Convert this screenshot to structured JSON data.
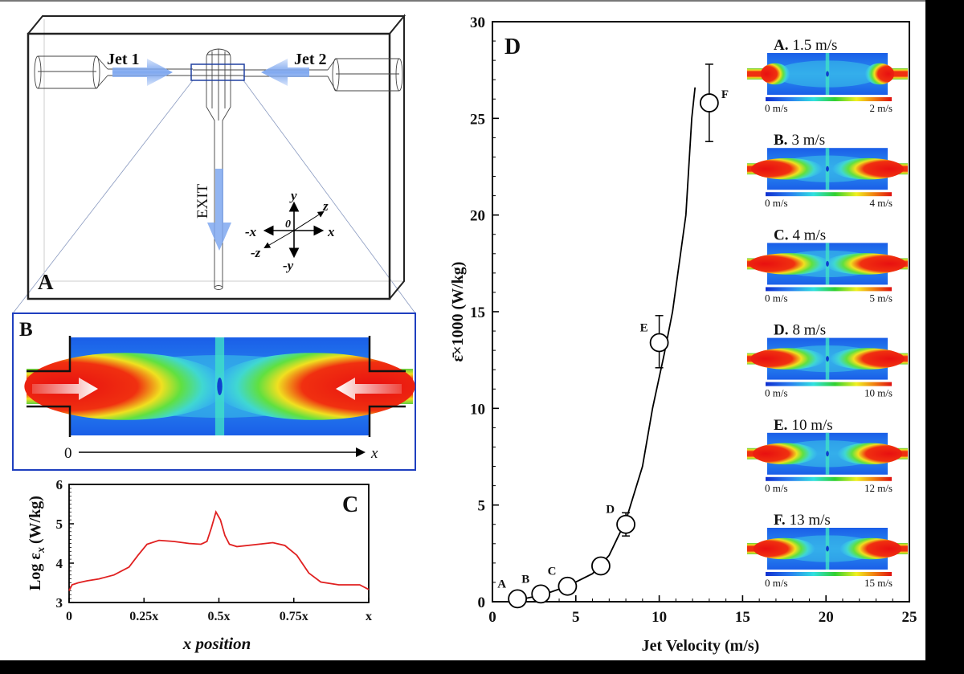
{
  "panel_a": {
    "label": "A",
    "jet1": "Jet 1",
    "jet2": "Jet 2",
    "exit": "EXIT",
    "axes": {
      "y": "y",
      "neg_y": "-y",
      "x": "x",
      "neg_x": "-x",
      "z": "z",
      "neg_z": "-z",
      "origin": "0"
    },
    "arrow_color": "#7fa8f0"
  },
  "panel_b": {
    "label": "B",
    "axis_start": "0",
    "axis_end": "x",
    "frame_color": "#1f3fbf"
  },
  "chart_data": [
    {
      "panel": "C",
      "type": "line",
      "label": "C",
      "xlabel": "x position",
      "ylabel_main": "Log ε",
      "ylabel_sub": "x",
      "ylabel_unit": "(W/kg)",
      "xlim": [
        0,
        1
      ],
      "ylim": [
        3,
        6
      ],
      "xticks": [
        0,
        0.25,
        0.5,
        0.75,
        1
      ],
      "xtick_labels": [
        "0",
        "0.25x",
        "0.5x",
        "0.75x",
        "x"
      ],
      "yticks": [
        3,
        4,
        5,
        6
      ],
      "ytick_labels": [
        "3",
        "4",
        "5",
        "6"
      ],
      "color": "#e02020",
      "x": [
        0,
        0.01,
        0.03,
        0.06,
        0.1,
        0.15,
        0.2,
        0.23,
        0.26,
        0.3,
        0.35,
        0.4,
        0.44,
        0.46,
        0.475,
        0.49,
        0.505,
        0.52,
        0.535,
        0.56,
        0.62,
        0.68,
        0.72,
        0.76,
        0.8,
        0.84,
        0.9,
        0.97,
        1.0
      ],
      "y": [
        3.3,
        3.45,
        3.5,
        3.55,
        3.6,
        3.7,
        3.9,
        4.2,
        4.48,
        4.58,
        4.55,
        4.5,
        4.48,
        4.55,
        4.9,
        5.3,
        5.1,
        4.7,
        4.48,
        4.42,
        4.47,
        4.52,
        4.45,
        4.2,
        3.75,
        3.52,
        3.45,
        3.45,
        3.33
      ],
      "grid": false
    },
    {
      "panel": "D",
      "type": "scatter",
      "label": "D",
      "xlabel": "Jet Velocity (m/s)",
      "ylabel": "ε̄×1000 (W/kg)",
      "xlim": [
        0,
        25
      ],
      "ylim": [
        0,
        30
      ],
      "xticks": [
        0,
        5,
        10,
        15,
        20,
        25
      ],
      "xtick_labels": [
        "0",
        "5",
        "10",
        "15",
        "20",
        "25"
      ],
      "yticks": [
        0,
        5,
        10,
        15,
        20,
        25,
        30
      ],
      "ytick_labels": [
        "0",
        "5",
        "10",
        "15",
        "20",
        "25",
        "30"
      ],
      "grid": false,
      "points": [
        {
          "label": "A",
          "x": 1.5,
          "y": 0.15
        },
        {
          "label": "B",
          "x": 2.9,
          "y": 0.4
        },
        {
          "label": "C",
          "x": 4.5,
          "y": 0.8
        },
        {
          "label": "",
          "x": 6.5,
          "y": 1.85
        },
        {
          "label": "D",
          "x": 8.0,
          "y": 4.0,
          "err_low": 3.4,
          "err_high": 4.6
        },
        {
          "label": "E",
          "x": 10.0,
          "y": 13.4,
          "err_low": 12.1,
          "err_high": 14.8
        },
        {
          "label": "F",
          "x": 13.0,
          "y": 25.8,
          "err_low": 23.8,
          "err_high": 27.8
        }
      ],
      "fit_curve": {
        "x": [
          1.3,
          3,
          4.5,
          6,
          7,
          8,
          9,
          9.6,
          10.3,
          10.8,
          11.6,
          11.95,
          12.15
        ],
        "y": [
          0.05,
          0.35,
          0.8,
          1.45,
          2.4,
          4.2,
          7.0,
          10,
          12.8,
          15,
          20,
          25,
          26.6
        ]
      },
      "insets": [
        {
          "letter": "A.",
          "speed": "1.5 m/s",
          "scale_min": "0 m/s",
          "scale_max": "2 m/s"
        },
        {
          "letter": "B.",
          "speed": "3 m/s",
          "scale_min": "0 m/s",
          "scale_max": "4 m/s"
        },
        {
          "letter": "C.",
          "speed": "4 m/s",
          "scale_min": "0 m/s",
          "scale_max": "5 m/s"
        },
        {
          "letter": "D.",
          "speed": "8 m/s",
          "scale_min": "0 m/s",
          "scale_max": "10 m/s"
        },
        {
          "letter": "E.",
          "speed": "10 m/s",
          "scale_min": "0 m/s",
          "scale_max": "12 m/s"
        },
        {
          "letter": "F.",
          "speed": "13 m/s",
          "scale_min": "0 m/s",
          "scale_max": "15 m/s"
        }
      ],
      "colormap": [
        "#1030d0",
        "#2a80f0",
        "#30e0e0",
        "#30d030",
        "#f0f020",
        "#f08010",
        "#e01010"
      ]
    }
  ]
}
